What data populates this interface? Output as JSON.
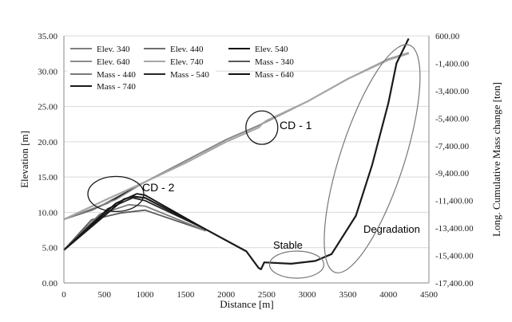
{
  "chart_data": {
    "type": "line",
    "xlabel": "Distance [m]",
    "ylabel": "Elevation [m]",
    "y2label": "Long. Cumulative Mass change [ton]",
    "xlim": [
      0,
      4500
    ],
    "ylim": [
      0,
      35
    ],
    "y2lim": [
      -17400,
      600
    ],
    "x_ticks": [
      "0",
      "500",
      "1000",
      "1500",
      "2000",
      "2500",
      "3000",
      "3500",
      "4000",
      "4500"
    ],
    "y_ticks": [
      "0.00",
      "5.00",
      "10.00",
      "15.00",
      "20.00",
      "25.00",
      "30.00",
      "35.00"
    ],
    "y2_ticks": [
      "600.00",
      "-1,400.00",
      "-3,400.00",
      "-5,400.00",
      "-7,400.00",
      "-9,400.00",
      "-11,400.00",
      "-13,400.00",
      "-15,400.00",
      "-17,400.00"
    ],
    "legend_position": "top-left",
    "colors": {
      "elev_340": "#7f7f7f",
      "elev_440": "#6e6e6e",
      "elev_540": "#111111",
      "elev_640": "#8c8c8c",
      "elev_740": "#a6a6a6",
      "mass_340": "#595959",
      "mass_440": "#7a7a7a",
      "mass_540": "#262626",
      "mass_640": "#111111",
      "mass_740": "#1a1a1a",
      "annotation": "#1a1a1a",
      "annotation_gray": "#777777"
    },
    "series": [
      {
        "name": "Elev. 340",
        "axis": "y",
        "x": [
          0,
          350,
          1000,
          2000,
          2400,
          3000,
          3500,
          4000,
          4250
        ],
        "y": [
          9.0,
          10.3,
          14.3,
          20.3,
          22.3,
          25.7,
          28.9,
          31.7,
          32.6
        ]
      },
      {
        "name": "Elev. 440",
        "axis": "y",
        "x": [
          0,
          440,
          1000,
          2000,
          2400,
          3000,
          3500,
          4000,
          4250
        ],
        "y": [
          9.0,
          10.8,
          14.3,
          20.3,
          22.3,
          25.7,
          28.9,
          31.7,
          32.6
        ]
      },
      {
        "name": "Elev. 540",
        "axis": "y",
        "x": [
          0,
          540,
          1000,
          2000,
          2400,
          3000,
          3500,
          4000,
          4250
        ],
        "y": [
          9.0,
          11.3,
          14.3,
          20.3,
          22.3,
          25.7,
          28.9,
          31.7,
          32.6
        ]
      },
      {
        "name": "Elev. 640",
        "axis": "y",
        "x": [
          0,
          640,
          1000,
          2000,
          2400,
          3000,
          3500,
          4000,
          4250
        ],
        "y": [
          9.0,
          11.8,
          14.3,
          20.3,
          22.3,
          25.7,
          28.9,
          31.7,
          32.6
        ]
      },
      {
        "name": "Elev. 740",
        "axis": "y",
        "x": [
          0,
          500,
          1000,
          1500,
          2000,
          2400,
          2450,
          2500,
          3000,
          3500,
          4000,
          4250
        ],
        "y": [
          9.0,
          11.7,
          14.3,
          17.0,
          20.0,
          22.0,
          22.6,
          23.0,
          25.7,
          28.9,
          31.6,
          32.5
        ]
      },
      {
        "name": "Mass - 340",
        "axis": "y2",
        "x": [
          0,
          340,
          700,
          1000,
          1750
        ],
        "y": [
          -15000,
          -12800,
          -12300,
          -12100,
          -13600
        ]
      },
      {
        "name": "Mass - 440",
        "axis": "y2",
        "x": [
          0,
          440,
          800,
          1000,
          1750
        ],
        "y": [
          -15000,
          -12400,
          -11700,
          -11800,
          -13600
        ]
      },
      {
        "name": "Mass - 540",
        "axis": "y2",
        "x": [
          0,
          540,
          850,
          1000,
          1750
        ],
        "y": [
          -15000,
          -12000,
          -11200,
          -11400,
          -13500
        ]
      },
      {
        "name": "Mass - 640",
        "axis": "y2",
        "x": [
          0,
          640,
          900,
          1000,
          1750
        ],
        "y": [
          -15000,
          -11600,
          -10900,
          -11000,
          -13500
        ]
      },
      {
        "name": "Mass - 740",
        "axis": "y2",
        "x": [
          0,
          740,
          850,
          1000,
          1750,
          2000,
          2250,
          2400,
          2430,
          2470,
          2800,
          3100,
          3300,
          3600,
          3800,
          4000,
          4100,
          4250
        ],
        "y": [
          -15000,
          -11300,
          -11100,
          -11200,
          -13500,
          -14300,
          -15100,
          -16300,
          -16400,
          -15900,
          -16000,
          -15800,
          -15300,
          -12500,
          -8800,
          -4300,
          -1400,
          400
        ]
      }
    ],
    "annotations": [
      {
        "label": "CD - 1"
      },
      {
        "label": "CD - 2"
      },
      {
        "label": "Stable"
      },
      {
        "label": "Degradation"
      }
    ]
  }
}
